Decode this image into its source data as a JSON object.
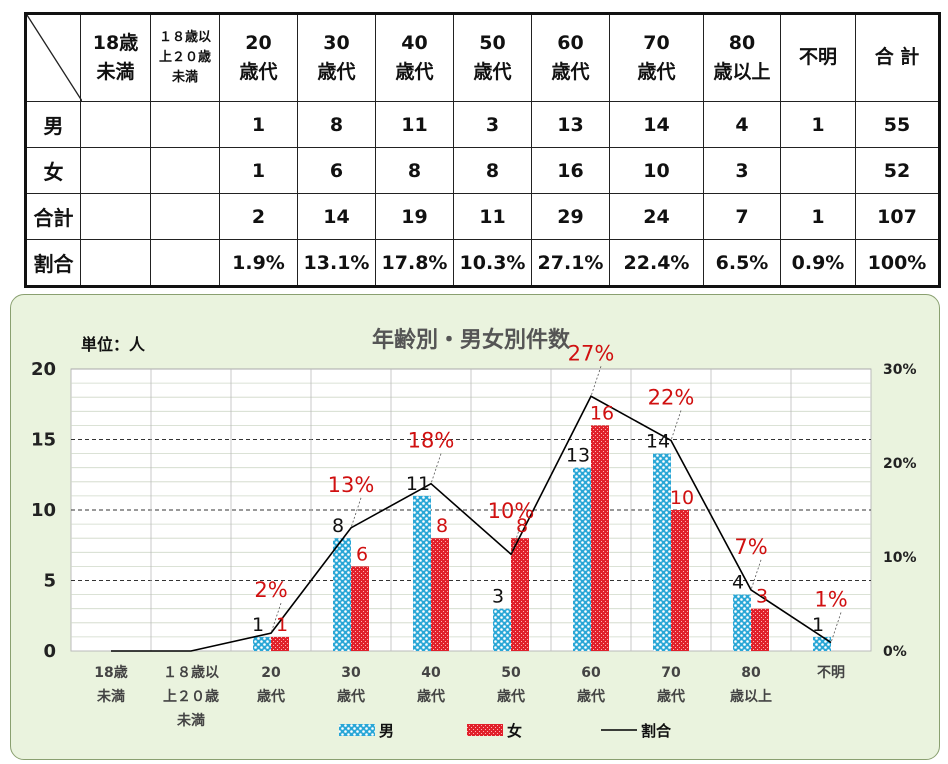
{
  "table": {
    "header": [
      "18歳\n未満",
      "１８歳以\n上２０歳\n未満",
      "20\n歳代",
      "30\n歳代",
      "40\n歳代",
      "50\n歳代",
      "60\n歳代",
      "70\n歳代",
      "80\n歳以上",
      "不明",
      "合 計"
    ],
    "rows": [
      {
        "label": "男",
        "cells": [
          "",
          "",
          "1",
          "8",
          "11",
          "3",
          "13",
          "14",
          "4",
          "1",
          "55"
        ]
      },
      {
        "label": "女",
        "cells": [
          "",
          "",
          "1",
          "6",
          "8",
          "8",
          "16",
          "10",
          "3",
          "",
          "52"
        ]
      },
      {
        "label": "合計",
        "cells": [
          "",
          "",
          "2",
          "14",
          "19",
          "11",
          "29",
          "24",
          "7",
          "1",
          "107"
        ]
      },
      {
        "label": "割合",
        "cells": [
          "",
          "",
          "1.9%",
          "13.1%",
          "17.8%",
          "10.3%",
          "27.1%",
          "22.4%",
          "6.5%",
          "0.9%",
          "100%"
        ]
      }
    ]
  },
  "chart_data": {
    "type": "bar",
    "title": "年齢別・男女別件数",
    "unit_label": "単位：人",
    "categories": [
      "18歳\n未満",
      "１８歳以\n上２０歳\n未満",
      "20\n歳代",
      "30\n歳代",
      "40\n歳代",
      "50\n歳代",
      "60\n歳代",
      "70\n歳代",
      "80\n歳以上",
      "不明"
    ],
    "series": [
      {
        "name": "男",
        "type": "bar",
        "values": [
          null,
          null,
          1,
          8,
          11,
          3,
          13,
          14,
          4,
          1
        ],
        "labels": [
          "",
          "",
          "1",
          "8",
          "11",
          "3",
          "13",
          "14",
          "4",
          "1"
        ],
        "color": "#2aa7d6"
      },
      {
        "name": "女",
        "type": "bar",
        "values": [
          null,
          null,
          1,
          6,
          8,
          8,
          16,
          10,
          3,
          null
        ],
        "labels": [
          "",
          "",
          "1",
          "6",
          "8",
          "8",
          "16",
          "10",
          "3",
          ""
        ],
        "color": "#e0202a"
      },
      {
        "name": "割合",
        "type": "line",
        "axis": "right",
        "values": [
          0,
          0,
          1.9,
          13.1,
          17.8,
          10.3,
          27.1,
          22.4,
          6.5,
          0.9
        ],
        "labels": [
          "",
          "",
          "2%",
          "13%",
          "18%",
          "10%",
          "27%",
          "22%",
          "7%",
          "1%"
        ],
        "color": "#000000"
      }
    ],
    "yticks": [
      "0",
      "5",
      "10",
      "15",
      "20"
    ],
    "ylim": [
      0,
      20
    ],
    "y2ticks": [
      "0%",
      "10%",
      "20%",
      "30%"
    ],
    "y2lim": [
      0,
      30
    ],
    "legend": "bottom",
    "grid": true
  }
}
